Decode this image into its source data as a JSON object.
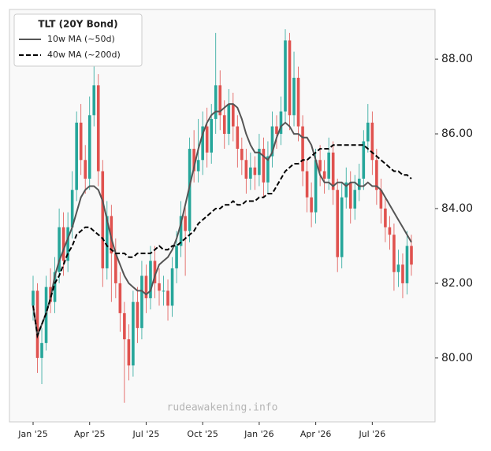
{
  "chart_data": {
    "type": "candlestick",
    "legend_title": "TLT (20Y Bond)",
    "watermark": "rudeawakening.info",
    "up_color": "#26a69a",
    "down_color": "#e0524f",
    "legend": "upper left",
    "categories": [
      "Jan '25",
      null,
      null,
      null,
      null,
      null,
      null,
      null,
      null,
      null,
      null,
      null,
      null,
      "Apr '25",
      null,
      null,
      null,
      null,
      null,
      null,
      null,
      null,
      null,
      null,
      null,
      null,
      "Jul '25",
      null,
      null,
      null,
      null,
      null,
      null,
      null,
      null,
      null,
      null,
      null,
      null,
      "Oct '25",
      null,
      null,
      null,
      null,
      null,
      null,
      null,
      null,
      null,
      null,
      null,
      null,
      "Jan '26",
      null,
      null,
      null,
      null,
      null,
      null,
      null,
      null,
      null,
      null,
      null,
      null,
      "Apr '26",
      null,
      null,
      null,
      null,
      null,
      null,
      null,
      null,
      null,
      null,
      null,
      null,
      "Jul '26",
      null,
      null,
      null,
      null,
      null,
      null,
      null,
      null,
      null
    ],
    "open": [
      81.4,
      81.8,
      80.0,
      80.4,
      81.9,
      81.5,
      82.3,
      83.5,
      82.6,
      83.5,
      84.5,
      86.3,
      85.3,
      84.8,
      86.5,
      87.3,
      85.0,
      82.4,
      83.8,
      82.8,
      82.0,
      81.2,
      80.5,
      79.8,
      81.5,
      80.8,
      82.2,
      81.6,
      82.6,
      82.0,
      81.8,
      81.8,
      81.4,
      82.4,
      83.0,
      83.8,
      83.4,
      85.6,
      85.0,
      85.3,
      86.2,
      85.5,
      86.4,
      87.3,
      86.5,
      86.0,
      86.8,
      86.2,
      85.6,
      85.3,
      84.8,
      85.1,
      84.9,
      85.6,
      84.7,
      85.4,
      86.2,
      86.0,
      86.6,
      88.5,
      86.5,
      87.5,
      86.2,
      85.0,
      84.3,
      83.9,
      85.3,
      85.0,
      84.8,
      85.5,
      84.5,
      82.7,
      84.3,
      84.7,
      84.0,
      84.5,
      84.8,
      85.8,
      86.3,
      85.3,
      84.5,
      84.0,
      83.5,
      83.3,
      82.3,
      82.5,
      82.0,
      83.0
    ],
    "high": [
      82.2,
      82.0,
      80.8,
      82.2,
      82.4,
      82.7,
      84.0,
      83.9,
      83.9,
      85.0,
      86.6,
      86.8,
      85.7,
      87.0,
      88.0,
      87.6,
      85.3,
      84.2,
      84.1,
      83.2,
      82.3,
      81.5,
      80.9,
      81.8,
      81.9,
      82.6,
      82.5,
      83.0,
      83.0,
      82.4,
      82.2,
      82.1,
      82.7,
      83.4,
      84.2,
      84.1,
      85.9,
      86.1,
      86.4,
      86.6,
      86.7,
      86.8,
      88.7,
      87.7,
      86.9,
      87.2,
      87.1,
      86.5,
      85.9,
      85.6,
      85.5,
      85.4,
      86.0,
      85.9,
      85.8,
      86.6,
      86.5,
      87.0,
      88.8,
      88.7,
      88.2,
      87.8,
      86.5,
      85.3,
      84.7,
      85.6,
      85.7,
      85.3,
      85.9,
      85.8,
      84.8,
      84.7,
      85.1,
      85.0,
      84.9,
      85.2,
      86.1,
      86.8,
      86.6,
      85.6,
      84.8,
      84.3,
      83.8,
      83.6,
      82.9,
      82.8,
      83.4,
      83.3
    ],
    "low": [
      81.0,
      79.6,
      79.3,
      80.2,
      81.2,
      81.2,
      82.0,
      82.2,
      82.3,
      83.2,
      84.2,
      84.9,
      84.4,
      84.5,
      86.2,
      84.6,
      81.9,
      82.1,
      81.5,
      81.6,
      80.7,
      78.8,
      79.4,
      79.5,
      80.4,
      80.5,
      81.2,
      81.3,
      81.6,
      81.4,
      81.4,
      81.0,
      81.1,
      82.0,
      82.7,
      82.2,
      83.1,
      84.7,
      84.7,
      84.9,
      85.1,
      85.2,
      86.0,
      86.1,
      85.6,
      85.7,
      85.8,
      85.1,
      84.9,
      84.4,
      84.5,
      84.5,
      84.6,
      84.3,
      84.4,
      85.1,
      85.6,
      85.7,
      86.3,
      86.1,
      86.2,
      85.8,
      84.6,
      83.9,
      83.5,
      83.6,
      84.6,
      84.4,
      84.5,
      84.1,
      82.3,
      82.4,
      84.0,
      83.6,
      83.7,
      84.2,
      84.5,
      85.5,
      84.9,
      84.1,
      83.6,
      83.1,
      82.9,
      81.8,
      81.9,
      81.6,
      81.7,
      82.2
    ],
    "close": [
      81.8,
      80.0,
      80.4,
      81.9,
      81.5,
      82.3,
      83.5,
      82.6,
      83.5,
      84.5,
      86.3,
      85.3,
      84.8,
      86.5,
      87.3,
      85.0,
      82.4,
      83.8,
      82.8,
      82.0,
      81.2,
      80.5,
      79.8,
      81.5,
      80.8,
      82.2,
      81.6,
      82.6,
      82.0,
      81.8,
      81.8,
      81.4,
      82.4,
      83.0,
      83.8,
      83.4,
      85.6,
      85.0,
      85.3,
      86.2,
      85.5,
      86.4,
      87.3,
      86.5,
      86.0,
      86.8,
      86.2,
      85.6,
      85.3,
      84.8,
      85.1,
      84.9,
      85.6,
      84.7,
      85.4,
      86.2,
      86.0,
      86.6,
      88.5,
      86.5,
      87.5,
      86.2,
      85.0,
      84.3,
      83.9,
      85.3,
      85.0,
      84.8,
      85.5,
      84.5,
      82.7,
      84.3,
      84.7,
      84.0,
      84.5,
      84.8,
      85.8,
      86.3,
      85.3,
      84.5,
      84.0,
      83.5,
      83.3,
      82.3,
      82.5,
      82.0,
      83.0,
      82.5
    ],
    "series": [
      {
        "name": "10w MA (~50d)",
        "color": "#555555",
        "dash": "solid",
        "values": [
          81.4,
          80.6,
          80.9,
          81.2,
          81.6,
          82.2,
          82.6,
          82.9,
          83.2,
          83.5,
          83.9,
          84.3,
          84.5,
          84.6,
          84.6,
          84.5,
          84.2,
          83.7,
          83.2,
          82.8,
          82.5,
          82.2,
          82.0,
          81.9,
          81.8,
          81.8,
          81.7,
          81.8,
          82.2,
          82.5,
          82.6,
          82.7,
          82.9,
          83.2,
          83.6,
          84.1,
          84.6,
          85.1,
          85.6,
          86.0,
          86.3,
          86.5,
          86.6,
          86.6,
          86.7,
          86.8,
          86.8,
          86.7,
          86.4,
          86.0,
          85.7,
          85.5,
          85.5,
          85.4,
          85.3,
          85.5,
          85.9,
          86.2,
          86.3,
          86.2,
          86.0,
          86.0,
          85.9,
          85.9,
          85.7,
          85.3,
          84.9,
          84.7,
          84.7,
          84.6,
          84.7,
          84.7,
          84.6,
          84.7,
          84.7,
          84.6,
          84.6,
          84.7,
          84.6,
          84.6,
          84.5,
          84.3,
          84.1,
          83.9,
          83.7,
          83.5,
          83.3,
          83.1
        ]
      },
      {
        "name": "40w MA (~200d)",
        "color": "#000000",
        "dash": "dashed",
        "values": [
          81.4,
          80.6,
          80.9,
          81.2,
          81.6,
          82.0,
          82.2,
          82.5,
          82.8,
          83.0,
          83.3,
          83.4,
          83.5,
          83.5,
          83.4,
          83.3,
          83.2,
          83.0,
          82.9,
          82.8,
          82.8,
          82.8,
          82.7,
          82.7,
          82.8,
          82.8,
          82.8,
          82.8,
          82.9,
          83.0,
          82.9,
          82.9,
          83.0,
          83.0,
          83.1,
          83.2,
          83.3,
          83.4,
          83.6,
          83.7,
          83.8,
          83.9,
          84.0,
          84.0,
          84.1,
          84.1,
          84.2,
          84.1,
          84.1,
          84.2,
          84.2,
          84.2,
          84.3,
          84.3,
          84.4,
          84.4,
          84.6,
          84.8,
          85.0,
          85.1,
          85.2,
          85.2,
          85.3,
          85.3,
          85.4,
          85.5,
          85.6,
          85.6,
          85.6,
          85.7,
          85.7,
          85.7,
          85.7,
          85.7,
          85.7,
          85.7,
          85.7,
          85.6,
          85.5,
          85.4,
          85.3,
          85.2,
          85.1,
          85.0,
          85.0,
          84.9,
          84.9,
          84.8
        ]
      }
    ],
    "ylim": [
      78.29,
      89.33
    ],
    "yticks": [
      {
        "value": 80,
        "label": "80.00"
      },
      {
        "value": 82,
        "label": "82.00"
      },
      {
        "value": 84,
        "label": "84.00"
      },
      {
        "value": 86,
        "label": "86.00"
      },
      {
        "value": 88,
        "label": "88.00"
      }
    ],
    "grid": false
  }
}
